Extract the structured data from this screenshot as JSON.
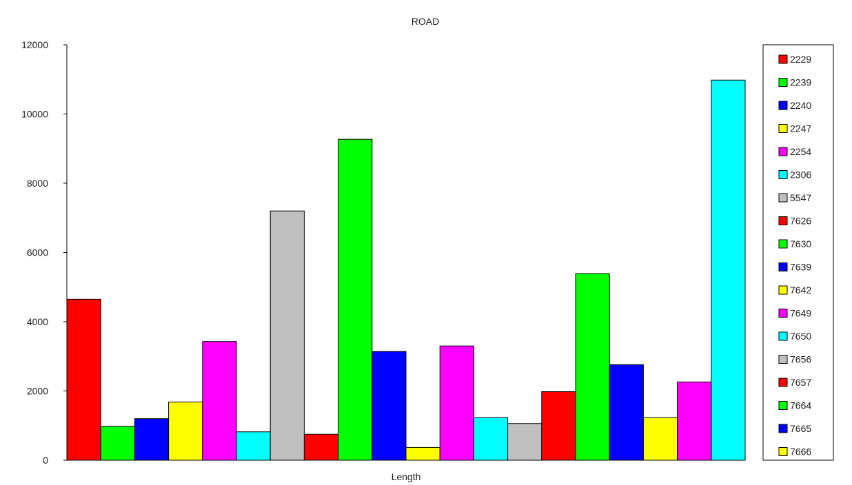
{
  "chart_data": {
    "type": "bar",
    "title": "ROAD",
    "xlabel": "Length",
    "ylabel": "",
    "ylim": [
      0,
      12000
    ],
    "yticks": [
      "0",
      "2000",
      "4000",
      "6000",
      "8000",
      "10000",
      "12000"
    ],
    "grid": false,
    "legend_position": "right",
    "categories": [
      "Length"
    ],
    "series": [
      {
        "name": "2229",
        "color": "#ff0000",
        "values": [
          4650
        ]
      },
      {
        "name": "2239",
        "color": "#00ff00",
        "values": [
          980
        ]
      },
      {
        "name": "2240",
        "color": "#0000ff",
        "values": [
          1200
        ]
      },
      {
        "name": "2247",
        "color": "#ffff00",
        "values": [
          1680
        ]
      },
      {
        "name": "2254",
        "color": "#ff00ff",
        "values": [
          3430
        ]
      },
      {
        "name": "2306",
        "color": "#00ffff",
        "values": [
          820
        ]
      },
      {
        "name": "5547",
        "color": "#c0c0c0",
        "values": [
          7200
        ]
      },
      {
        "name": "7626",
        "color": "#ff0000",
        "values": [
          750
        ]
      },
      {
        "name": "7630",
        "color": "#00ff00",
        "values": [
          9270
        ]
      },
      {
        "name": "7639",
        "color": "#0000ff",
        "values": [
          3140
        ]
      },
      {
        "name": "7642",
        "color": "#ffff00",
        "values": [
          370
        ]
      },
      {
        "name": "7649",
        "color": "#ff00ff",
        "values": [
          3300
        ]
      },
      {
        "name": "7650",
        "color": "#00ffff",
        "values": [
          1230
        ]
      },
      {
        "name": "7656",
        "color": "#c0c0c0",
        "values": [
          1060
        ]
      },
      {
        "name": "7657",
        "color": "#ff0000",
        "values": [
          1980
        ]
      },
      {
        "name": "7664",
        "color": "#00ff00",
        "values": [
          5390
        ]
      },
      {
        "name": "7665",
        "color": "#0000ff",
        "values": [
          2760
        ]
      },
      {
        "name": "7666",
        "color": "#ffff00",
        "values": [
          1230
        ]
      },
      {
        "name": "",
        "color": "#ff00ff",
        "values": [
          2260
        ]
      },
      {
        "name": "",
        "color": "#00ffff",
        "values": [
          10980
        ]
      }
    ]
  }
}
